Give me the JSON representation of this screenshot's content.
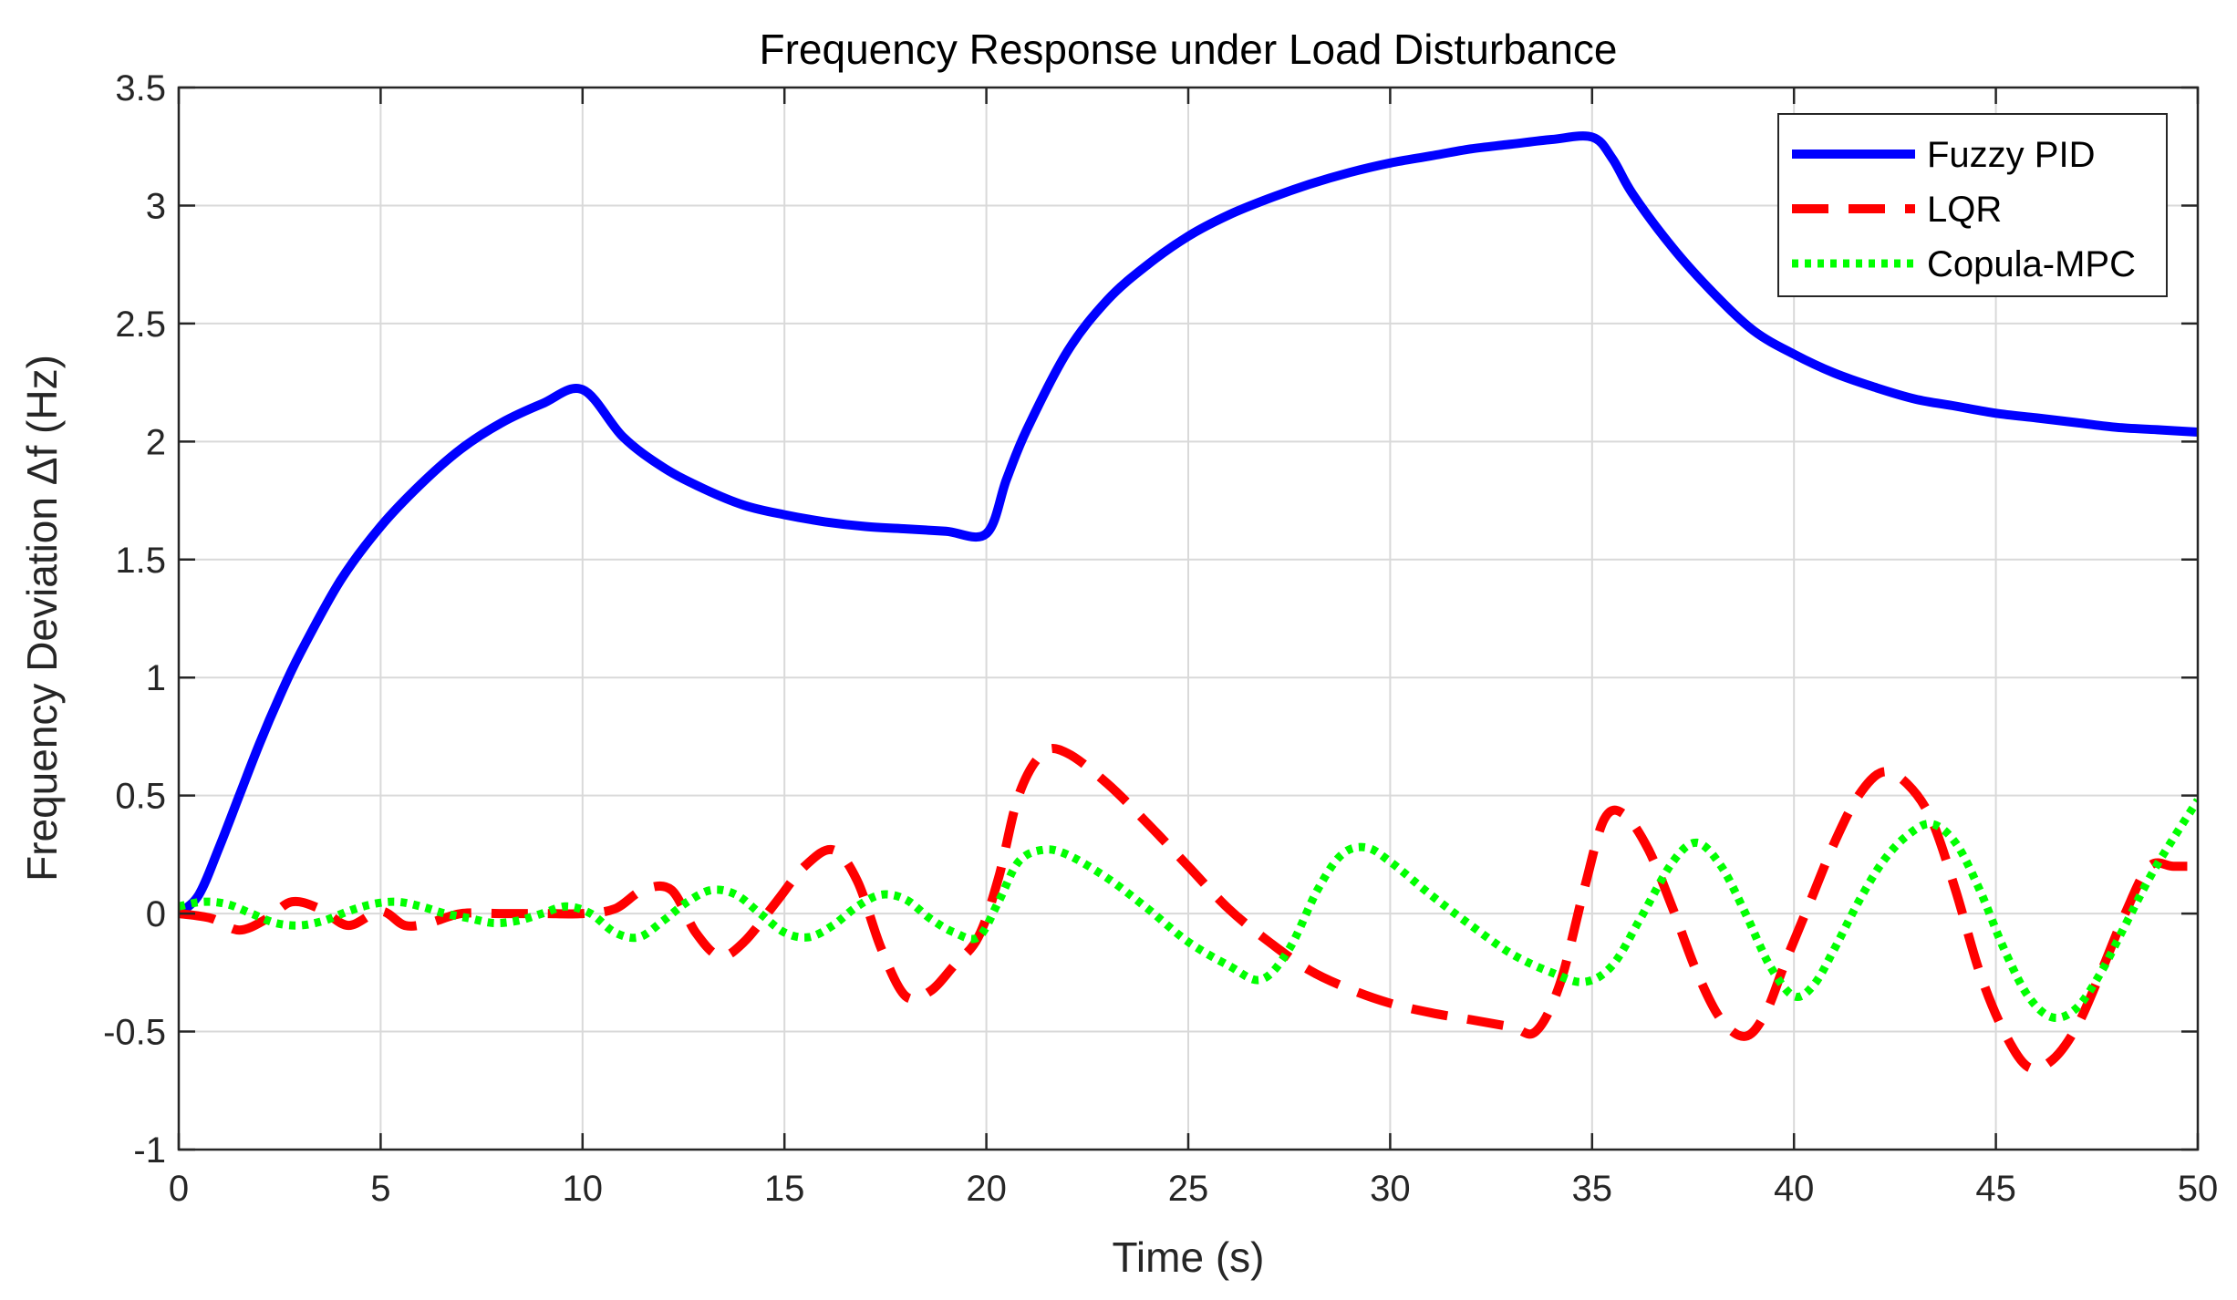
{
  "chart_data": {
    "type": "line",
    "title": "Frequency Response under Load Disturbance",
    "xlabel": "Time (s)",
    "ylabel": "Frequency Deviation Δf (Hz)",
    "xlim": [
      0,
      50
    ],
    "ylim": [
      -1,
      3.5
    ],
    "xticks": [
      0,
      5,
      10,
      15,
      20,
      25,
      30,
      35,
      40,
      45,
      50
    ],
    "yticks": [
      -1,
      -0.5,
      0,
      0.5,
      1,
      1.5,
      2,
      2.5,
      3,
      3.5
    ],
    "xtick_labels": [
      "0",
      "5",
      "10",
      "15",
      "20",
      "25",
      "30",
      "35",
      "40",
      "45",
      "50"
    ],
    "ytick_labels": [
      "-1",
      "-0.5",
      "0",
      "0.5",
      "1",
      "1.5",
      "2",
      "2.5",
      "3",
      "3.5"
    ],
    "grid": true,
    "legend_position": "top-right",
    "series": [
      {
        "name": "Fuzzy PID",
        "color": "#0000ff",
        "style": "solid",
        "x": [
          0,
          0.5,
          1,
          1.5,
          2,
          2.5,
          3,
          4,
          5,
          6,
          7,
          8,
          9,
          10,
          11,
          12,
          13,
          14,
          15,
          16,
          17,
          18,
          19,
          20,
          20.5,
          21,
          22,
          23,
          24,
          25,
          26,
          27,
          28,
          29,
          30,
          31,
          32,
          33,
          34,
          35,
          35.5,
          36,
          37,
          38,
          39,
          40,
          41,
          42,
          43,
          44,
          45,
          46,
          47,
          48,
          49,
          50
        ],
        "y": [
          0,
          0.08,
          0.28,
          0.5,
          0.72,
          0.92,
          1.1,
          1.41,
          1.64,
          1.82,
          1.97,
          2.08,
          2.16,
          2.22,
          2.02,
          1.89,
          1.8,
          1.73,
          1.69,
          1.66,
          1.64,
          1.63,
          1.62,
          1.61,
          1.84,
          2.05,
          2.38,
          2.6,
          2.75,
          2.87,
          2.96,
          3.03,
          3.09,
          3.14,
          3.18,
          3.21,
          3.24,
          3.26,
          3.28,
          3.29,
          3.2,
          3.05,
          2.82,
          2.63,
          2.47,
          2.37,
          2.29,
          2.23,
          2.18,
          2.15,
          2.12,
          2.1,
          2.08,
          2.06,
          2.05,
          2.04
        ]
      },
      {
        "name": "LQR",
        "color": "#ff0000",
        "style": "dashed",
        "x": [
          0,
          0.8,
          1.5,
          2.2,
          2.8,
          3.5,
          4.2,
          5,
          5.6,
          6.2,
          7,
          8,
          9,
          10,
          10.8,
          11.5,
          12.2,
          12.8,
          13.4,
          14,
          14.8,
          15.5,
          16.2,
          16.8,
          17.4,
          18,
          18.6,
          19.2,
          19.8,
          20.3,
          20.8,
          21.4,
          22,
          23,
          24,
          25,
          26,
          27,
          28,
          29,
          30,
          31,
          32,
          33,
          33.6,
          34.2,
          34.8,
          35.3,
          35.8,
          36.4,
          37,
          37.6,
          38.2,
          38.8,
          39.3,
          39.8,
          40.4,
          41,
          41.6,
          42.2,
          42.8,
          43.4,
          44,
          44.6,
          45.2,
          45.8,
          46.4,
          47,
          47.6,
          48.2,
          48.8,
          49.4,
          50
        ],
        "y": [
          0,
          -0.02,
          -0.07,
          -0.02,
          0.05,
          0.02,
          -0.05,
          0.01,
          -0.05,
          -0.04,
          0,
          0,
          0,
          0,
          0.02,
          0.1,
          0.1,
          -0.08,
          -0.18,
          -0.12,
          0.05,
          0.2,
          0.27,
          0.14,
          -0.15,
          -0.35,
          -0.33,
          -0.22,
          -0.1,
          0.15,
          0.5,
          0.68,
          0.68,
          0.55,
          0.38,
          0.2,
          0.02,
          -0.12,
          -0.24,
          -0.32,
          -0.38,
          -0.42,
          -0.45,
          -0.48,
          -0.5,
          -0.3,
          0.1,
          0.4,
          0.42,
          0.27,
          0.02,
          -0.25,
          -0.45,
          -0.52,
          -0.42,
          -0.2,
          0.05,
          0.3,
          0.5,
          0.6,
          0.55,
          0.4,
          0.1,
          -0.25,
          -0.5,
          -0.65,
          -0.62,
          -0.48,
          -0.25,
          0,
          0.2,
          0.2,
          0.2
        ]
      },
      {
        "name": "Copula-MPC",
        "color": "#00ff00",
        "style": "dotted",
        "x": [
          0,
          0.6,
          1.2,
          1.8,
          2.4,
          3,
          3.6,
          4.2,
          4.8,
          5.4,
          6,
          6.6,
          7.2,
          7.8,
          8.4,
          9,
          9.6,
          10.2,
          10.8,
          11.4,
          12,
          12.6,
          13.2,
          13.8,
          14.4,
          15,
          15.6,
          16.2,
          16.8,
          17.4,
          18,
          18.6,
          19.2,
          19.8,
          20.3,
          20.8,
          21.4,
          22,
          23,
          24,
          25,
          26,
          26.8,
          27.5,
          28.2,
          28.8,
          29.4,
          30,
          31,
          32,
          33,
          34,
          34.8,
          35.5,
          36.2,
          37,
          37.6,
          38.2,
          38.8,
          39.4,
          40,
          40.5,
          41,
          41.6,
          42.2,
          42.8,
          43.4,
          44,
          44.6,
          45.2,
          45.8,
          46.4,
          47,
          47.6,
          48.2,
          48.8,
          49.4,
          50
        ],
        "y": [
          0.03,
          0.05,
          0.04,
          0,
          -0.04,
          -0.05,
          -0.03,
          0.01,
          0.04,
          0.05,
          0.03,
          0,
          -0.02,
          -0.04,
          -0.03,
          0,
          0.03,
          0,
          -0.08,
          -0.1,
          -0.03,
          0.05,
          0.1,
          0.08,
          0,
          -0.08,
          -0.1,
          -0.05,
          0.03,
          0.08,
          0.06,
          -0.02,
          -0.08,
          -0.1,
          0.05,
          0.22,
          0.27,
          0.25,
          0.15,
          0.02,
          -0.12,
          -0.22,
          -0.28,
          -0.15,
          0.1,
          0.25,
          0.28,
          0.22,
          0.08,
          -0.05,
          -0.17,
          -0.25,
          -0.29,
          -0.22,
          -0.02,
          0.22,
          0.3,
          0.2,
          0,
          -0.22,
          -0.35,
          -0.3,
          -0.15,
          0.05,
          0.22,
          0.33,
          0.38,
          0.3,
          0.1,
          -0.15,
          -0.35,
          -0.44,
          -0.4,
          -0.25,
          -0.05,
          0.15,
          0.32,
          0.48
        ]
      }
    ]
  }
}
